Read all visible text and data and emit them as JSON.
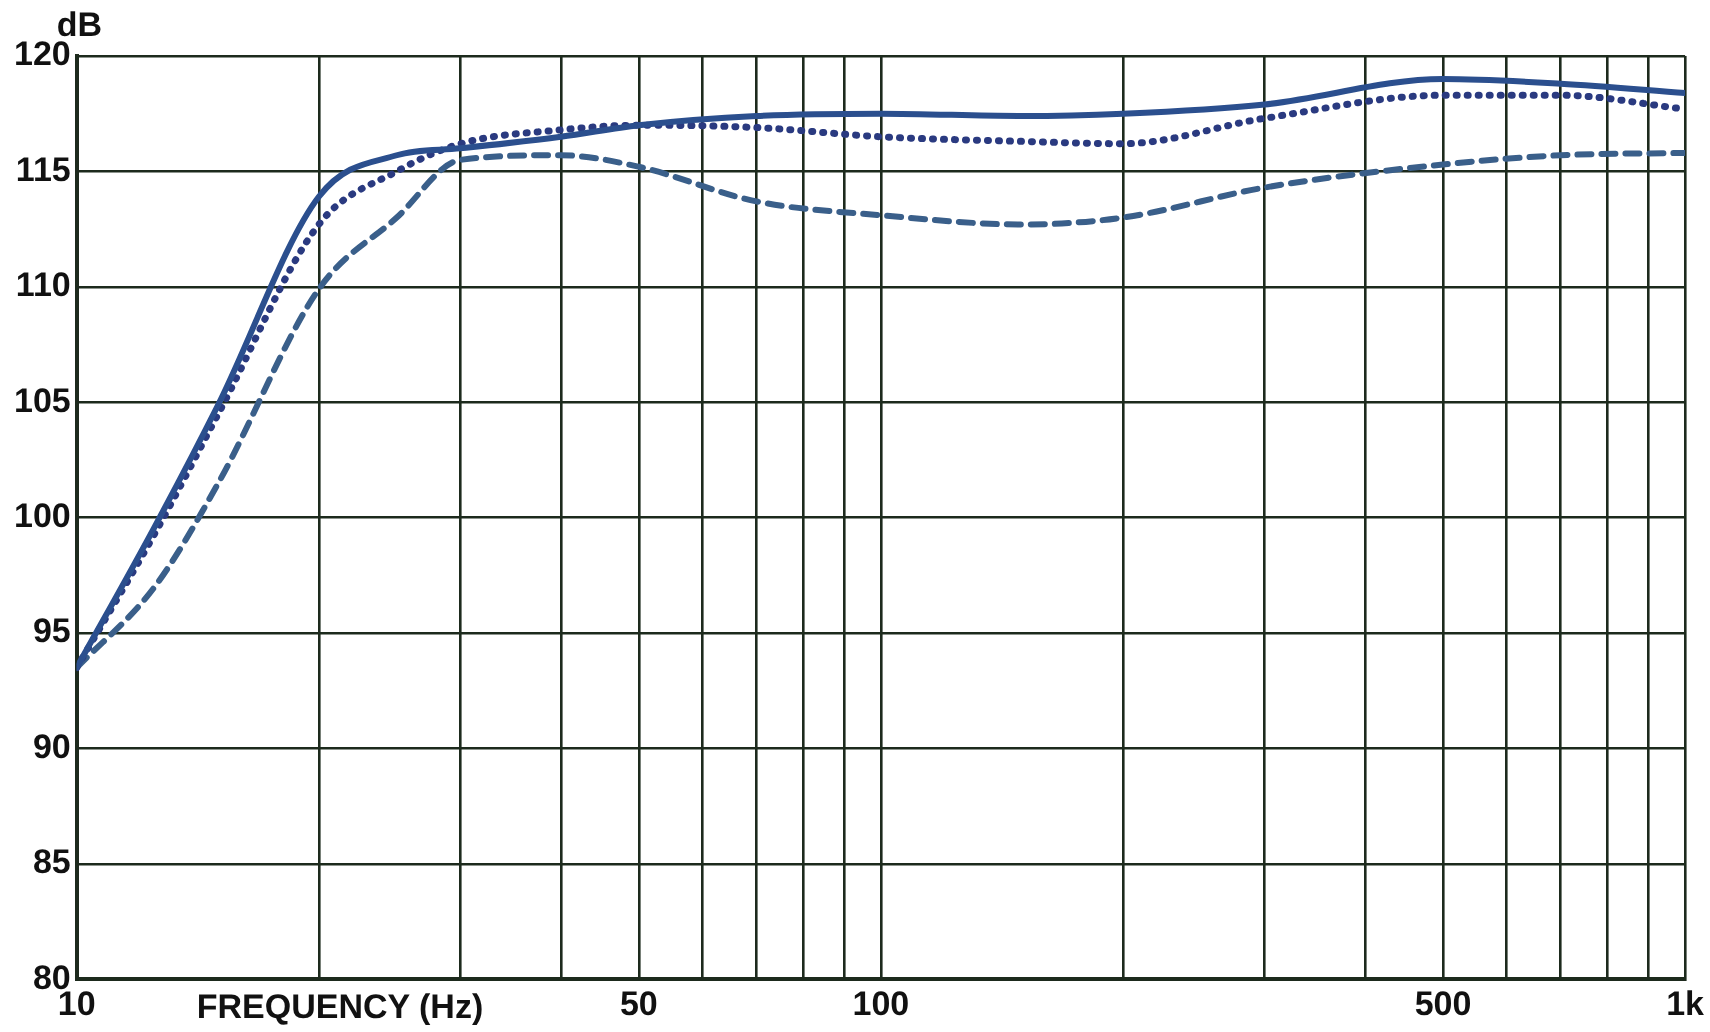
{
  "chart_data": {
    "type": "line",
    "xlabel": "FREQUENCY (Hz)",
    "ylabel": "dB",
    "log": "x",
    "grid": true,
    "marker": "none",
    "legend": false,
    "xlim": [
      10,
      1000
    ],
    "ylim": [
      80,
      120
    ],
    "xticks": [
      10,
      {
        "value": 20,
        "label": null
      },
      {
        "value": 30,
        "label": null
      },
      {
        "value": 40,
        "label": null
      },
      50,
      {
        "value": 60,
        "label": null
      },
      {
        "value": 70,
        "label": null
      },
      {
        "value": 80,
        "label": null
      },
      {
        "value": 90,
        "label": null
      },
      100,
      {
        "value": 200,
        "label": null
      },
      {
        "value": 300,
        "label": null
      },
      {
        "value": 400,
        "label": null
      },
      500,
      {
        "value": 600,
        "label": null
      },
      {
        "value": 700,
        "label": null
      },
      {
        "value": 800,
        "label": null
      },
      {
        "value": 900,
        "label": null
      },
      {
        "value": 1000,
        "label": "1k"
      }
    ],
    "yticks": [
      80,
      85,
      90,
      95,
      100,
      105,
      110,
      115,
      120
    ],
    "x": [
      10,
      12.5,
      15,
      20,
      25,
      30,
      40,
      50,
      70,
      100,
      150,
      200,
      300,
      500,
      700,
      1000
    ],
    "series": [
      {
        "color": "#2b4f8e",
        "line_style": "solid",
        "values": [
          93.5,
          99.6,
          104.9,
          113.9,
          115.7,
          116,
          116.5,
          117,
          117.4,
          117.5,
          117.4,
          117.5,
          117.9,
          119,
          118.8,
          118.4
        ]
      },
      {
        "color": "#2a3a80",
        "line_style": "dotted",
        "values": [
          93.5,
          99.3,
          104.5,
          112.7,
          115,
          116.2,
          116.8,
          117,
          116.9,
          116.5,
          116.3,
          116.2,
          117.3,
          118.3,
          118.3,
          117.7
        ]
      },
      {
        "color": "#3a5f8a",
        "line_style": "dashed",
        "values": [
          93.5,
          97,
          101.5,
          109.9,
          113,
          115.5,
          115.7,
          115.2,
          113.7,
          113.1,
          112.7,
          113,
          114.3,
          115.3,
          115.7,
          115.8
        ]
      }
    ]
  }
}
